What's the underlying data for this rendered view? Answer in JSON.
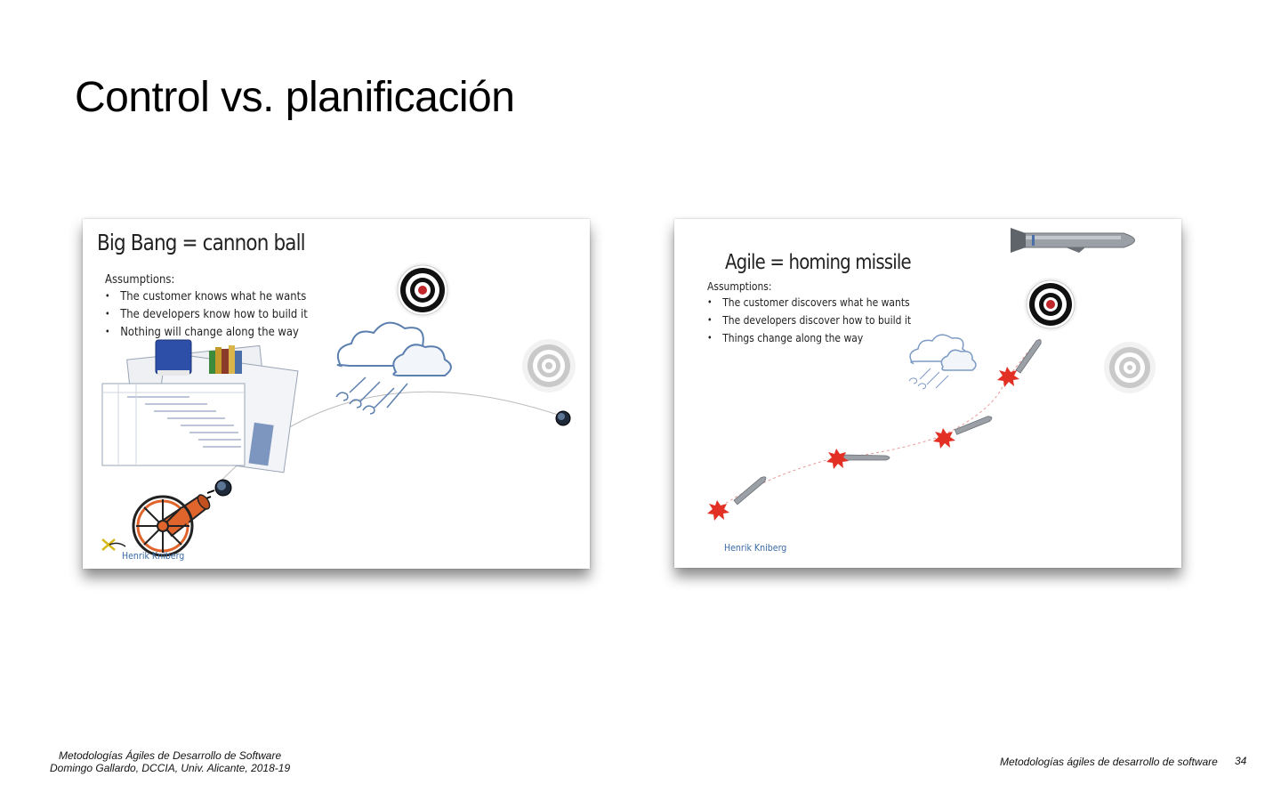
{
  "slide": {
    "title": "Control vs. planificación"
  },
  "left_panel": {
    "heading": "Big Bang = cannon ball",
    "assumptions_label": "Assumptions:",
    "assumptions": [
      "The customer knows what he wants",
      "The developers know how to build it",
      "Nothing will change along the way"
    ],
    "credit": "Henrik Kniberg"
  },
  "right_panel": {
    "heading": "Agile = homing missile",
    "assumptions_label": "Assumptions:",
    "assumptions": [
      "The customer discovers what he wants",
      "The developers discover how to build it",
      "Things change along the way"
    ],
    "credit": "Henrik Kniberg"
  },
  "footer": {
    "course_line": "Metodologías Ágiles de Desarrollo de Software",
    "author_line": "Domingo Gallardo, DCCIA, Univ. Alicante, 2018-19",
    "right_text": "Metodologías ágiles de desarrollo de software",
    "page_number": "34"
  },
  "colors": {
    "target_red": "#c0262a",
    "cannon_orange": "#e0652c",
    "cloud_blue": "#5b7fae",
    "missile_grey": "#9aa0a6",
    "explosion_red": "#e23124",
    "credit_blue": "#3a6aa6"
  },
  "icons": [
    "target-icon",
    "faded-target-icon",
    "cloud-icon",
    "wind-icon",
    "cannon-icon",
    "cannonball-icon",
    "documents-icon",
    "books-icon",
    "missile-icon",
    "explosion-icon"
  ]
}
